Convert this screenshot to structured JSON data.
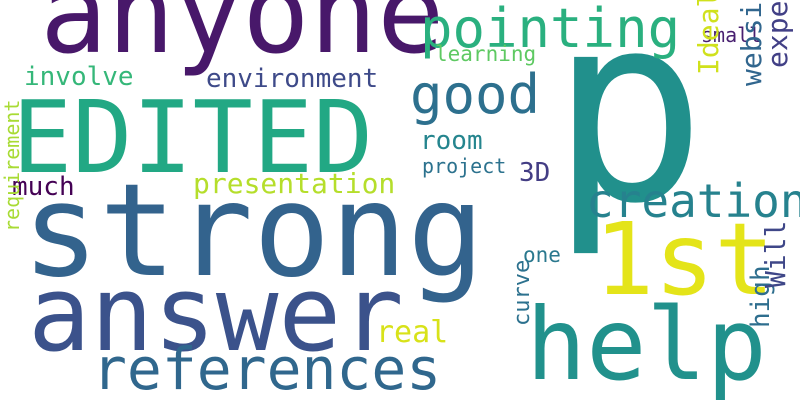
{
  "words": [
    {
      "text": "p",
      "color": "#21908c",
      "rotated": false
    },
    {
      "text": "strong",
      "color": "#33638d",
      "rotated": false
    },
    {
      "text": "anyone",
      "color": "#48186a",
      "rotated": false
    },
    {
      "text": "EDITED",
      "color": "#22a884",
      "rotated": false
    },
    {
      "text": "answer",
      "color": "#3b528b",
      "rotated": false
    },
    {
      "text": "1st",
      "color": "#e4e419",
      "rotated": false
    },
    {
      "text": "help",
      "color": "#21918c",
      "rotated": false
    },
    {
      "text": "references",
      "color": "#30678d",
      "rotated": false
    },
    {
      "text": "pointing",
      "color": "#2ab07f",
      "rotated": false
    },
    {
      "text": "good",
      "color": "#2d708e",
      "rotated": false
    },
    {
      "text": "creation",
      "color": "#26828e",
      "rotated": false
    },
    {
      "text": "presentation",
      "color": "#b5de2b",
      "rotated": false
    },
    {
      "text": "environment",
      "color": "#3e4a89",
      "rotated": false
    },
    {
      "text": "involve",
      "color": "#35b779",
      "rotated": false
    },
    {
      "text": "much",
      "color": "#440154",
      "rotated": false
    },
    {
      "text": "room",
      "color": "#25858e",
      "rotated": false
    },
    {
      "text": "project",
      "color": "#2c728e",
      "rotated": false
    },
    {
      "text": "3D",
      "color": "#433d84",
      "rotated": false
    },
    {
      "text": "learning",
      "color": "#5ec962",
      "rotated": false
    },
    {
      "text": "small",
      "color": "#481f70",
      "rotated": false
    },
    {
      "text": "one",
      "color": "#2a788e",
      "rotated": false
    },
    {
      "text": "real",
      "color": "#d8e219",
      "rotated": false
    },
    {
      "text": "Ideally",
      "color": "#d0e11c",
      "rotated": true
    },
    {
      "text": "website",
      "color": "#31668e",
      "rotated": true
    },
    {
      "text": "expense",
      "color": "#424086",
      "rotated": true
    },
    {
      "text": "high",
      "color": "#2e6e8e",
      "rotated": true
    },
    {
      "text": "Will",
      "color": "#3f4788",
      "rotated": true
    },
    {
      "text": "curve",
      "color": "#2c718e",
      "rotated": true
    },
    {
      "text": "requirement",
      "color": "#a8db34",
      "rotated": true
    }
  ]
}
